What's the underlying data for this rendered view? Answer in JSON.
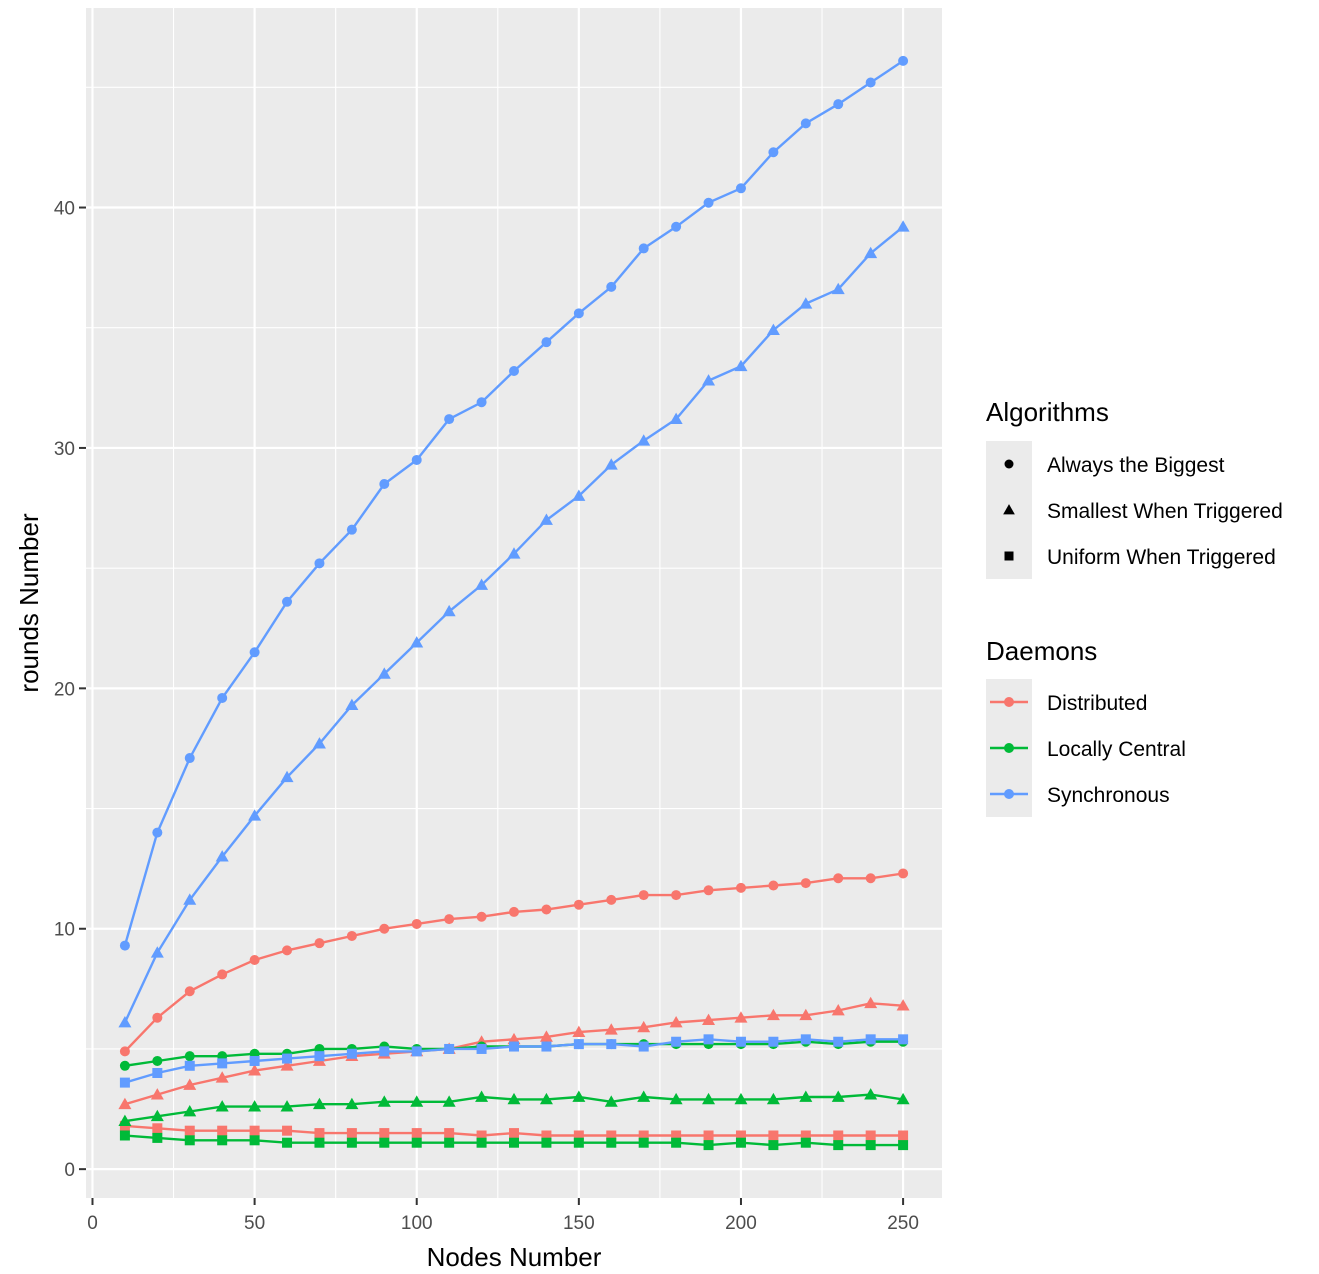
{
  "chart_data": {
    "type": "line",
    "title": "",
    "xlabel": "Nodes Number",
    "ylabel": "rounds Number",
    "xlim": [
      -2,
      262
    ],
    "ylim": [
      -1.2,
      48.3
    ],
    "xticks": [
      0,
      50,
      100,
      150,
      200,
      250
    ],
    "yticks": [
      0,
      10,
      20,
      30,
      40
    ],
    "grid": true,
    "legend_position": "right",
    "x": [
      10,
      20,
      30,
      40,
      50,
      60,
      70,
      80,
      90,
      100,
      110,
      120,
      130,
      140,
      150,
      160,
      170,
      180,
      190,
      200,
      210,
      220,
      230,
      240,
      250
    ],
    "legends": {
      "algorithms": {
        "title": "Algorithms",
        "items": [
          {
            "label": "Always the Biggest",
            "shape": "circle"
          },
          {
            "label": "Smallest When Triggered",
            "shape": "triangle"
          },
          {
            "label": "Uniform When Triggered",
            "shape": "square"
          }
        ]
      },
      "daemons": {
        "title": "Daemons",
        "items": [
          {
            "label": "Distributed",
            "color": "#F8766D"
          },
          {
            "label": "Locally Central",
            "color": "#00BA38"
          },
          {
            "label": "Synchronous",
            "color": "#619CFF"
          }
        ]
      }
    },
    "series": [
      {
        "daemon": "Distributed",
        "algorithm": "Always the Biggest",
        "color": "#F8766D",
        "shape": "circle",
        "values": [
          4.9,
          6.3,
          7.4,
          8.1,
          8.7,
          9.1,
          9.4,
          9.7,
          10.0,
          10.2,
          10.4,
          10.5,
          10.7,
          10.8,
          11.0,
          11.2,
          11.4,
          11.4,
          11.6,
          11.7,
          11.8,
          11.9,
          12.1,
          12.1,
          12.3
        ]
      },
      {
        "daemon": "Distributed",
        "algorithm": "Smallest When Triggered",
        "color": "#F8766D",
        "shape": "triangle",
        "values": [
          2.7,
          3.1,
          3.5,
          3.8,
          4.1,
          4.3,
          4.5,
          4.7,
          4.8,
          4.9,
          5.0,
          5.3,
          5.4,
          5.5,
          5.7,
          5.8,
          5.9,
          6.1,
          6.2,
          6.3,
          6.4,
          6.4,
          6.6,
          6.9,
          6.8
        ]
      },
      {
        "daemon": "Distributed",
        "algorithm": "Uniform When Triggered",
        "color": "#F8766D",
        "shape": "square",
        "values": [
          1.8,
          1.7,
          1.6,
          1.6,
          1.6,
          1.6,
          1.5,
          1.5,
          1.5,
          1.5,
          1.5,
          1.4,
          1.5,
          1.4,
          1.4,
          1.4,
          1.4,
          1.4,
          1.4,
          1.4,
          1.4,
          1.4,
          1.4,
          1.4,
          1.4
        ]
      },
      {
        "daemon": "Locally Central",
        "algorithm": "Always the Biggest",
        "color": "#00BA38",
        "shape": "circle",
        "values": [
          4.3,
          4.5,
          4.7,
          4.7,
          4.8,
          4.8,
          5.0,
          5.0,
          5.1,
          5.0,
          5.0,
          5.1,
          5.1,
          5.1,
          5.2,
          5.2,
          5.2,
          5.2,
          5.2,
          5.2,
          5.2,
          5.3,
          5.2,
          5.3,
          5.3
        ]
      },
      {
        "daemon": "Locally Central",
        "algorithm": "Smallest When Triggered",
        "color": "#00BA38",
        "shape": "triangle",
        "values": [
          2.0,
          2.2,
          2.4,
          2.6,
          2.6,
          2.6,
          2.7,
          2.7,
          2.8,
          2.8,
          2.8,
          3.0,
          2.9,
          2.9,
          3.0,
          2.8,
          3.0,
          2.9,
          2.9,
          2.9,
          2.9,
          3.0,
          3.0,
          3.1,
          2.9
        ]
      },
      {
        "daemon": "Locally Central",
        "algorithm": "Uniform When Triggered",
        "color": "#00BA38",
        "shape": "square",
        "values": [
          1.4,
          1.3,
          1.2,
          1.2,
          1.2,
          1.1,
          1.1,
          1.1,
          1.1,
          1.1,
          1.1,
          1.1,
          1.1,
          1.1,
          1.1,
          1.1,
          1.1,
          1.1,
          1.0,
          1.1,
          1.0,
          1.1,
          1.0,
          1.0,
          1.0
        ]
      },
      {
        "daemon": "Synchronous",
        "algorithm": "Always the Biggest",
        "color": "#619CFF",
        "shape": "circle",
        "values": [
          9.3,
          14.0,
          17.1,
          19.6,
          21.5,
          23.6,
          25.2,
          26.6,
          28.5,
          29.5,
          31.2,
          31.9,
          33.2,
          34.4,
          35.6,
          36.7,
          38.3,
          39.2,
          40.2,
          40.8,
          42.3,
          43.5,
          44.3,
          45.2,
          46.1
        ]
      },
      {
        "daemon": "Synchronous",
        "algorithm": "Smallest When Triggered",
        "color": "#619CFF",
        "shape": "triangle",
        "values": [
          6.1,
          9.0,
          11.2,
          13.0,
          14.7,
          16.3,
          17.7,
          19.3,
          20.6,
          21.9,
          23.2,
          24.3,
          25.6,
          27.0,
          28.0,
          29.3,
          30.3,
          31.2,
          32.8,
          33.4,
          34.9,
          36.0,
          36.6,
          38.1,
          39.2
        ]
      },
      {
        "daemon": "Synchronous",
        "algorithm": "Uniform When Triggered",
        "color": "#619CFF",
        "shape": "square",
        "values": [
          3.6,
          4.0,
          4.3,
          4.4,
          4.5,
          4.6,
          4.7,
          4.8,
          4.9,
          4.9,
          5.0,
          5.0,
          5.1,
          5.1,
          5.2,
          5.2,
          5.1,
          5.3,
          5.4,
          5.3,
          5.3,
          5.4,
          5.3,
          5.4,
          5.4
        ]
      }
    ],
    "colors": {
      "panel_background": "#EBEBEB",
      "grid_major": "#FFFFFF",
      "tick_text": "#4D4D4D",
      "legend_key_background": "#EBEBEB"
    }
  }
}
